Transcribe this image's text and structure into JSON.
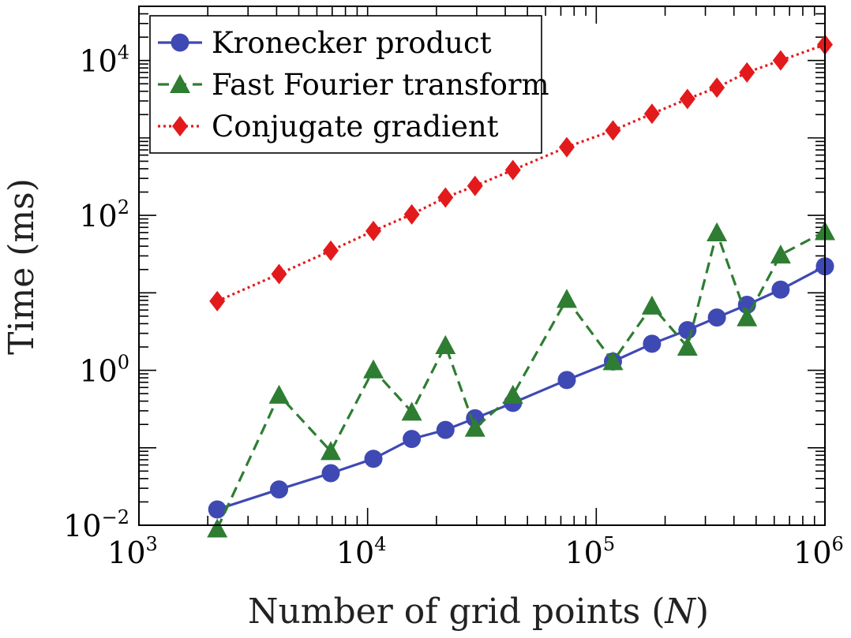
{
  "chart_data": {
    "type": "line",
    "title": "",
    "xlabel": "Number of grid points (N)",
    "xlabel_parts": [
      "Number of grid points (",
      "N",
      ")"
    ],
    "ylabel": "Time (ms)",
    "xscale": "log",
    "yscale": "log",
    "xlim": [
      1000,
      1000000
    ],
    "ylim": [
      0.01,
      50000
    ],
    "x_ticks": [
      {
        "value": 1000,
        "base": "10",
        "exp": "3"
      },
      {
        "value": 10000,
        "base": "10",
        "exp": "4"
      },
      {
        "value": 100000,
        "base": "10",
        "exp": "5"
      },
      {
        "value": 1000000,
        "base": "10",
        "exp": "6"
      }
    ],
    "y_ticks": [
      {
        "value": 0.01,
        "base": "10",
        "exp": "−2"
      },
      {
        "value": 1,
        "base": "10",
        "exp": "0"
      },
      {
        "value": 100,
        "base": "10",
        "exp": "2"
      },
      {
        "value": 10000,
        "base": "10",
        "exp": "4"
      }
    ],
    "grid": false,
    "legend_position": "top-left",
    "x": [
      2200,
      4100,
      6900,
      10600,
      15600,
      21900,
      29500,
      43200,
      74300,
      118300,
      175200,
      250400,
      336800,
      456000,
      640000,
      1000000
    ],
    "series": [
      {
        "name": "Kronecker product",
        "color": "#3f49b3",
        "line_style": "solid",
        "marker": "circle",
        "values": [
          0.016,
          0.029,
          0.047,
          0.072,
          0.13,
          0.17,
          0.24,
          0.38,
          0.75,
          1.3,
          2.2,
          3.3,
          4.8,
          7.0,
          11.0,
          22.0
        ]
      },
      {
        "name": "Fast Fourier transform",
        "color": "#2e7d32",
        "line_style": "dashed",
        "marker": "triangle",
        "values": [
          0.009,
          0.48,
          0.09,
          1.02,
          0.29,
          2.1,
          0.18,
          0.48,
          8.3,
          1.3,
          6.8,
          2.0,
          60.0,
          4.8,
          31.0,
          62.0
        ]
      },
      {
        "name": "Conjugate gradient",
        "color": "#e31a1c",
        "line_style": "dotted",
        "marker": "diamond",
        "values": [
          7.8,
          17.5,
          35.0,
          63.0,
          103.0,
          170.0,
          240.0,
          385.0,
          760.0,
          1250.0,
          2050.0,
          3180.0,
          4460.0,
          7000.0,
          10000.0,
          16000.0
        ]
      }
    ]
  }
}
